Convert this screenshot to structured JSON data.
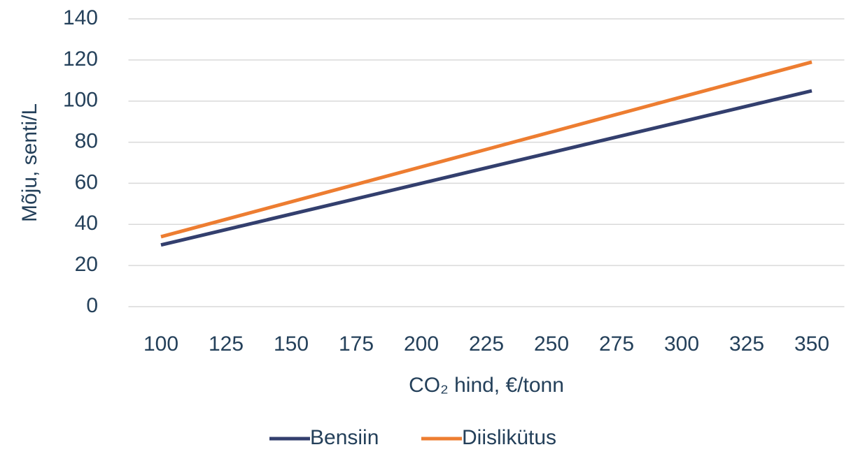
{
  "chart_data": {
    "type": "line",
    "y_label": "Mõju, senti/L",
    "x_label": "CO₂ hind, €/tonn",
    "categories": [
      "100",
      "125",
      "150",
      "175",
      "200",
      "225",
      "250",
      "275",
      "300",
      "325",
      "350"
    ],
    "series": [
      {
        "name": "Bensiin",
        "color": "#333f6e",
        "values": [
          30,
          37.5,
          45,
          52.5,
          60,
          67.5,
          75,
          82.5,
          90,
          97.5,
          105
        ]
      },
      {
        "name": "Diislikütus",
        "color": "#ed7d31",
        "values": [
          34,
          42.5,
          51,
          59.5,
          68,
          76.5,
          85,
          93.5,
          102,
          110.5,
          119
        ]
      }
    ],
    "ylim": [
      0,
      140
    ],
    "yticks": [
      0,
      20,
      40,
      60,
      80,
      100,
      120,
      140
    ],
    "grid": true,
    "legend": "bottom"
  }
}
